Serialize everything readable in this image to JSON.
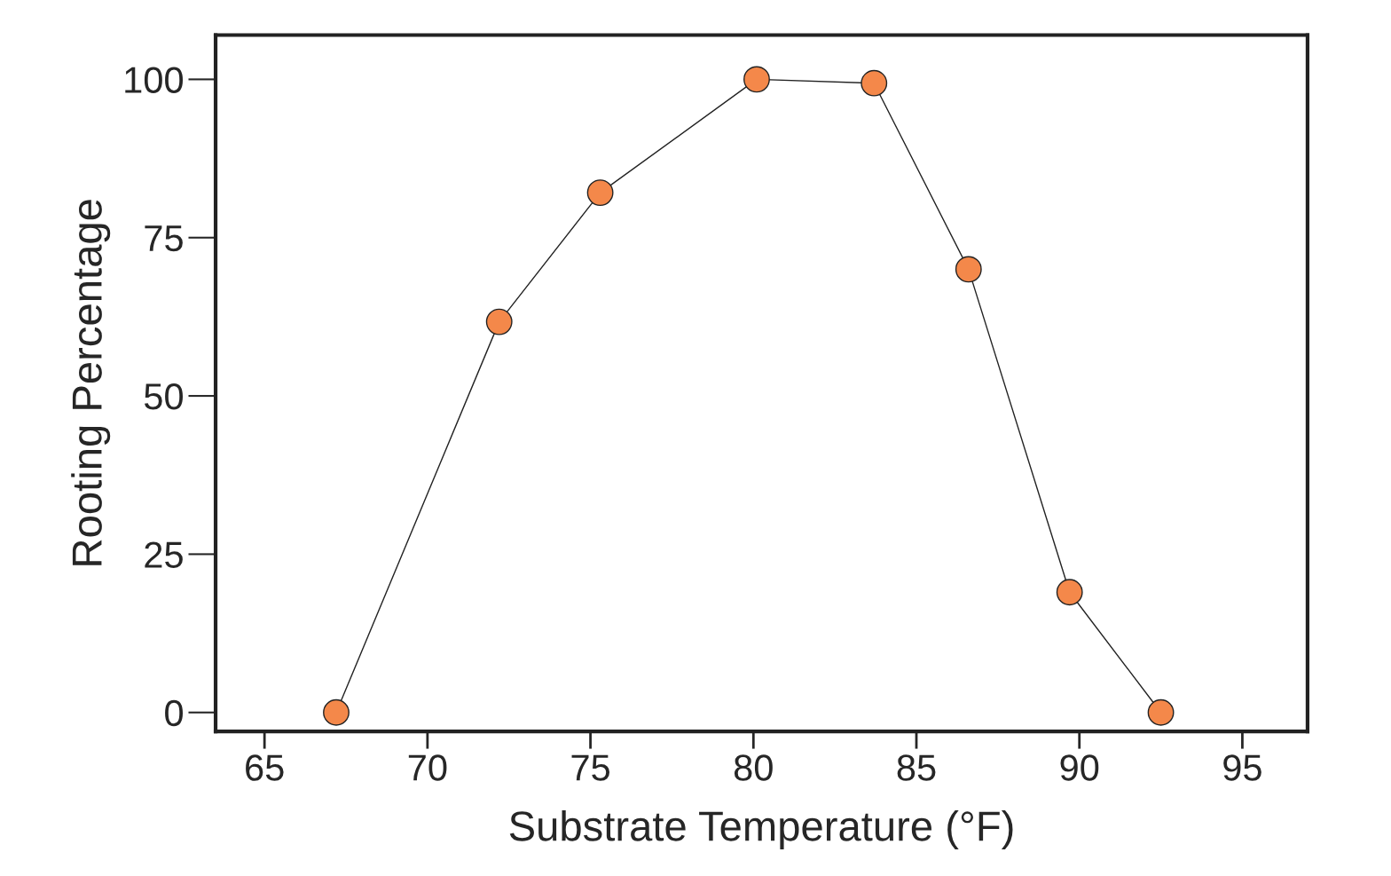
{
  "chart_data": {
    "type": "line",
    "xlabel": "Substrate Temperature (°F)",
    "ylabel": "Rooting Percentage",
    "x": [
      67.2,
      72.2,
      75.3,
      80.1,
      83.7,
      86.6,
      89.7,
      92.5
    ],
    "series": [
      {
        "color": "#f4884a",
        "values": [
          0,
          61.7,
          82.1,
          100,
          99.4,
          70,
          19,
          0
        ]
      }
    ],
    "marker": "circle",
    "line_style": "solid",
    "xlim": [
      63.5,
      97
    ],
    "xticks": [
      65,
      70,
      75,
      80,
      85,
      90,
      95
    ],
    "ylim": [
      -3,
      107
    ],
    "yticks": [
      0,
      25,
      50,
      75,
      100
    ],
    "grid": false
  }
}
